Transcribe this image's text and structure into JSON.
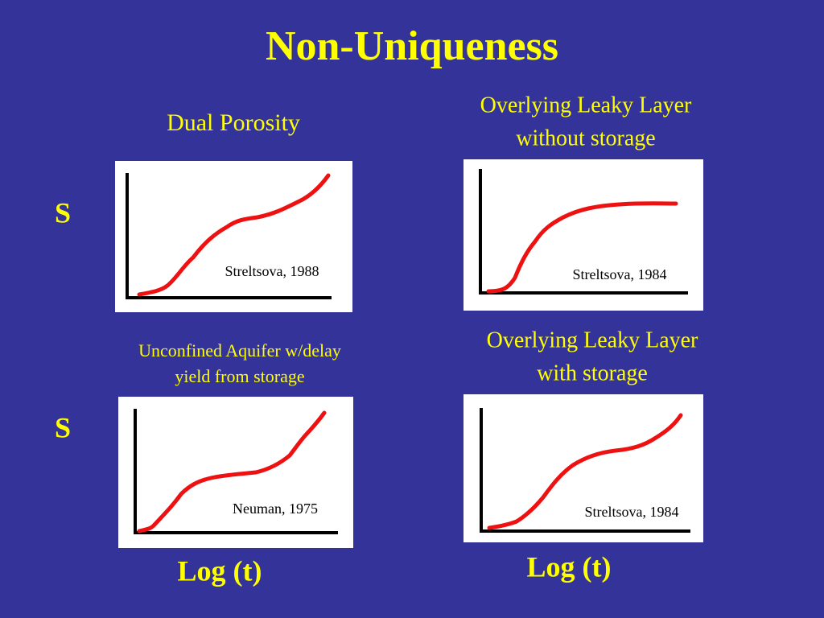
{
  "title": "Non-Uniqueness",
  "y_labels": [
    "S",
    "S"
  ],
  "x_labels": [
    "Log (t)",
    "Log (t)"
  ],
  "panels": [
    {
      "heading": [
        "Dual Porosity"
      ],
      "citation": "Streltsova, 1988"
    },
    {
      "heading": [
        "Overlying Leaky Layer",
        "without storage"
      ],
      "citation": "Streltsova, 1984"
    },
    {
      "heading": [
        "Unconfined Aquifer w/delay",
        "yield from storage"
      ],
      "citation": "Neuman, 1975"
    },
    {
      "heading": [
        "Overlying Leaky Layer",
        "with storage"
      ],
      "citation": "Streltsova, 1984"
    }
  ]
}
